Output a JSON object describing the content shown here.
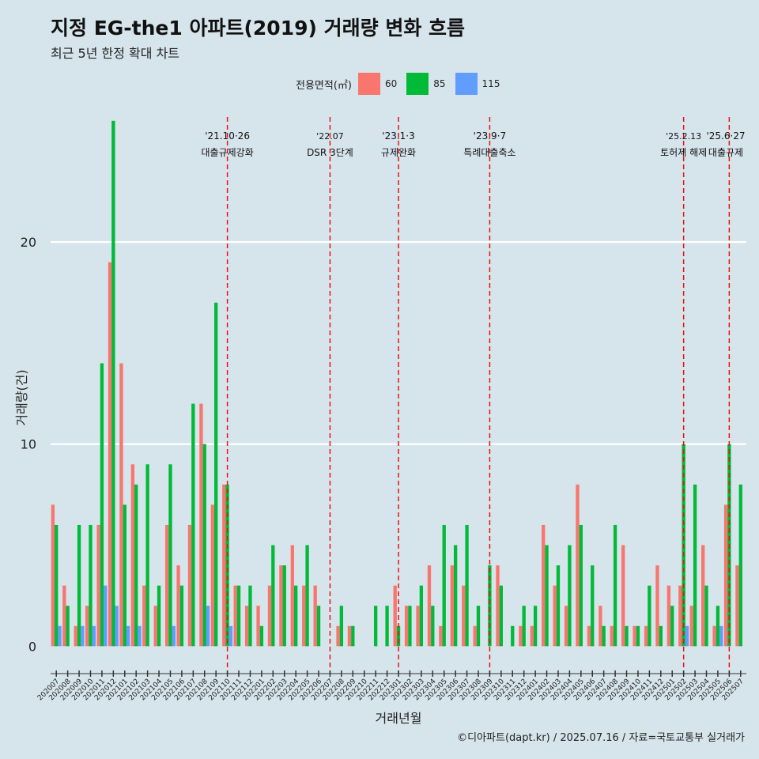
{
  "title": "지정 EG-the1 아파트(2019) 거래량 변화 흐름",
  "subtitle": "최근 5년 한정 확대 차트",
  "caption": "©디아파트(dapt.kr) / 2025.07.16 / 자료=국토교통부 실거래가",
  "chart_data": {
    "type": "bar",
    "xlabel": "거래년월",
    "ylabel": "거래량(건)",
    "ylim": [
      -1.2,
      26.5
    ],
    "y_ticks": [
      0,
      10,
      20
    ],
    "legend": {
      "title": "전용면적(㎡)",
      "position": "top"
    },
    "categories": [
      "202007",
      "202008",
      "202009",
      "202010",
      "202011",
      "202012",
      "202101",
      "202102",
      "202103",
      "202104",
      "202105",
      "202106",
      "202107",
      "202108",
      "202109",
      "202110",
      "202111",
      "202112",
      "202201",
      "202202",
      "202203",
      "202204",
      "202205",
      "202206",
      "202207",
      "202208",
      "202209",
      "202210",
      "202211",
      "202212",
      "202301",
      "202302",
      "202303",
      "202304",
      "202305",
      "202306",
      "202307",
      "202308",
      "202309",
      "202310",
      "202311",
      "202312",
      "202401",
      "202402",
      "202403",
      "202404",
      "202405",
      "202406",
      "202407",
      "202408",
      "202409",
      "202410",
      "202411",
      "202412",
      "202501",
      "202502",
      "202503",
      "202504",
      "202505",
      "202506",
      "202507"
    ],
    "series": [
      {
        "name": "60",
        "color": "#f8766d",
        "values": [
          7,
          3,
          1,
          2,
          6,
          19,
          14,
          9,
          3,
          2,
          6,
          4,
          6,
          12,
          7,
          8,
          3,
          2,
          2,
          3,
          4,
          5,
          3,
          3,
          0,
          1,
          1,
          0,
          0,
          0,
          3,
          2,
          2,
          4,
          1,
          4,
          3,
          1,
          0,
          4,
          0,
          1,
          1,
          6,
          3,
          2,
          8,
          1,
          2,
          1,
          5,
          1,
          1,
          4,
          3,
          3,
          2,
          5,
          1,
          7,
          4
        ]
      },
      {
        "name": "85",
        "color": "#00ba38",
        "values": [
          6,
          2,
          6,
          6,
          14,
          26,
          7,
          8,
          9,
          3,
          9,
          3,
          12,
          10,
          17,
          8,
          3,
          3,
          1,
          5,
          4,
          3,
          5,
          2,
          0,
          2,
          1,
          0,
          2,
          2,
          1,
          2,
          3,
          2,
          6,
          5,
          6,
          2,
          4,
          3,
          1,
          2,
          2,
          5,
          4,
          5,
          6,
          4,
          1,
          6,
          1,
          1,
          3,
          1,
          2,
          10,
          8,
          3,
          2,
          10,
          8
        ]
      },
      {
        "name": "115",
        "color": "#619cff",
        "values": [
          1,
          0,
          1,
          1,
          3,
          2,
          1,
          1,
          0,
          0,
          1,
          0,
          0,
          2,
          0,
          1,
          0,
          0,
          0,
          0,
          0,
          0,
          0,
          0,
          0,
          0,
          0,
          0,
          0,
          0,
          0,
          0,
          0,
          0,
          0,
          0,
          0,
          0,
          0,
          0,
          0,
          0,
          0,
          0,
          0,
          0,
          0,
          0,
          0,
          0,
          0,
          0,
          0,
          0,
          0,
          1,
          0,
          0,
          1,
          0,
          0
        ]
      }
    ],
    "annotations": [
      {
        "category": "202110",
        "date": "'21.10·26",
        "label": "대출규제강화"
      },
      {
        "category": "202207",
        "date": "'22.07",
        "label": "DSR 3단계"
      },
      {
        "category": "202301",
        "date": "'23.1·3",
        "label": "규제완화"
      },
      {
        "category": "202309",
        "date": "'23.9·7",
        "label": "특례대출축소"
      },
      {
        "category": "202502",
        "date": "'25.2.13",
        "label": "토허제 해제"
      },
      {
        "category": "202506",
        "date": "'25.6·27",
        "label": "대출규제"
      }
    ]
  }
}
